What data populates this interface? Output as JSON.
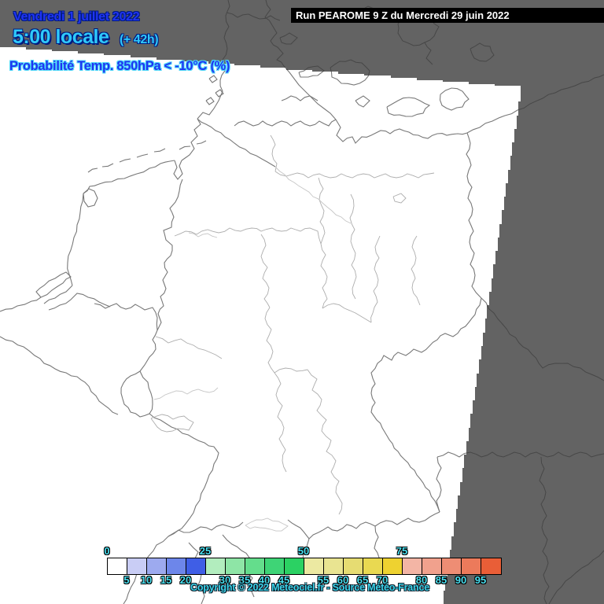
{
  "header": {
    "date": "Vendredi 1 juillet 2022",
    "time": "5:00 locale",
    "forecast_offset": "(+ 42h)",
    "variable": "Probabilité Temp. 850hPa < -10°C (%)"
  },
  "run_info": {
    "label": "Run PEAROME 9 Z du Mercredi 29 juin 2022"
  },
  "footer": {
    "copyright": "Copyright © 2022 Meteociel.fr - Source Météo-France"
  },
  "colorbar": {
    "unit": "%",
    "cell_values": [
      0,
      5,
      10,
      15,
      20,
      25,
      30,
      35,
      40,
      45,
      50,
      55,
      60,
      65,
      70,
      75,
      80,
      85,
      90,
      95
    ],
    "cell_colors": [
      "#ffffff",
      "#c9cdf5",
      "#9daaef",
      "#6d86ea",
      "#3f5ee6",
      "#b2edbe",
      "#8ee5a6",
      "#64dd8c",
      "#3ed476",
      "#2bd163",
      "#ece9a2",
      "#e9e491",
      "#e6dc72",
      "#e9d951",
      "#eed230",
      "#f3b5a5",
      "#f1a18d",
      "#ee8d74",
      "#ec7a5b",
      "#e95e37"
    ],
    "ticks_top": [
      {
        "label": "0",
        "boundary": 0
      },
      {
        "label": "25",
        "boundary": 5
      },
      {
        "label": "50",
        "boundary": 10
      },
      {
        "label": "75",
        "boundary": 15
      }
    ],
    "ticks_bottom": [
      {
        "label": "5",
        "boundary": 1
      },
      {
        "label": "10",
        "boundary": 2
      },
      {
        "label": "15",
        "boundary": 3
      },
      {
        "label": "20",
        "boundary": 4
      },
      {
        "label": "30",
        "boundary": 6
      },
      {
        "label": "35",
        "boundary": 7
      },
      {
        "label": "40",
        "boundary": 8
      },
      {
        "label": "45",
        "boundary": 9
      },
      {
        "label": "55",
        "boundary": 11
      },
      {
        "label": "60",
        "boundary": 12
      },
      {
        "label": "65",
        "boundary": 13
      },
      {
        "label": "70",
        "boundary": 14
      },
      {
        "label": "80",
        "boundary": 16
      },
      {
        "label": "85",
        "boundary": 17
      },
      {
        "label": "90",
        "boundary": 18
      },
      {
        "label": "95",
        "boundary": 19
      }
    ]
  },
  "colors": {
    "background_gray": "#636363",
    "domain_white": "#ffffff",
    "line_outside": "#474747",
    "line_country": "#787878",
    "line_state": "#adadad",
    "line_water": "#c6c6c6",
    "runbar_background": "#000000",
    "runbar_text": "#ffffff",
    "date_blue": "#1f34f2",
    "time_cyan": "#2fc9fa",
    "text_outline_navy": "#001a80",
    "variable_halo_cyan": "#4fd8f8",
    "tick_cyan": "#49dff0",
    "copyright_cyan": "#3cd2e8"
  }
}
